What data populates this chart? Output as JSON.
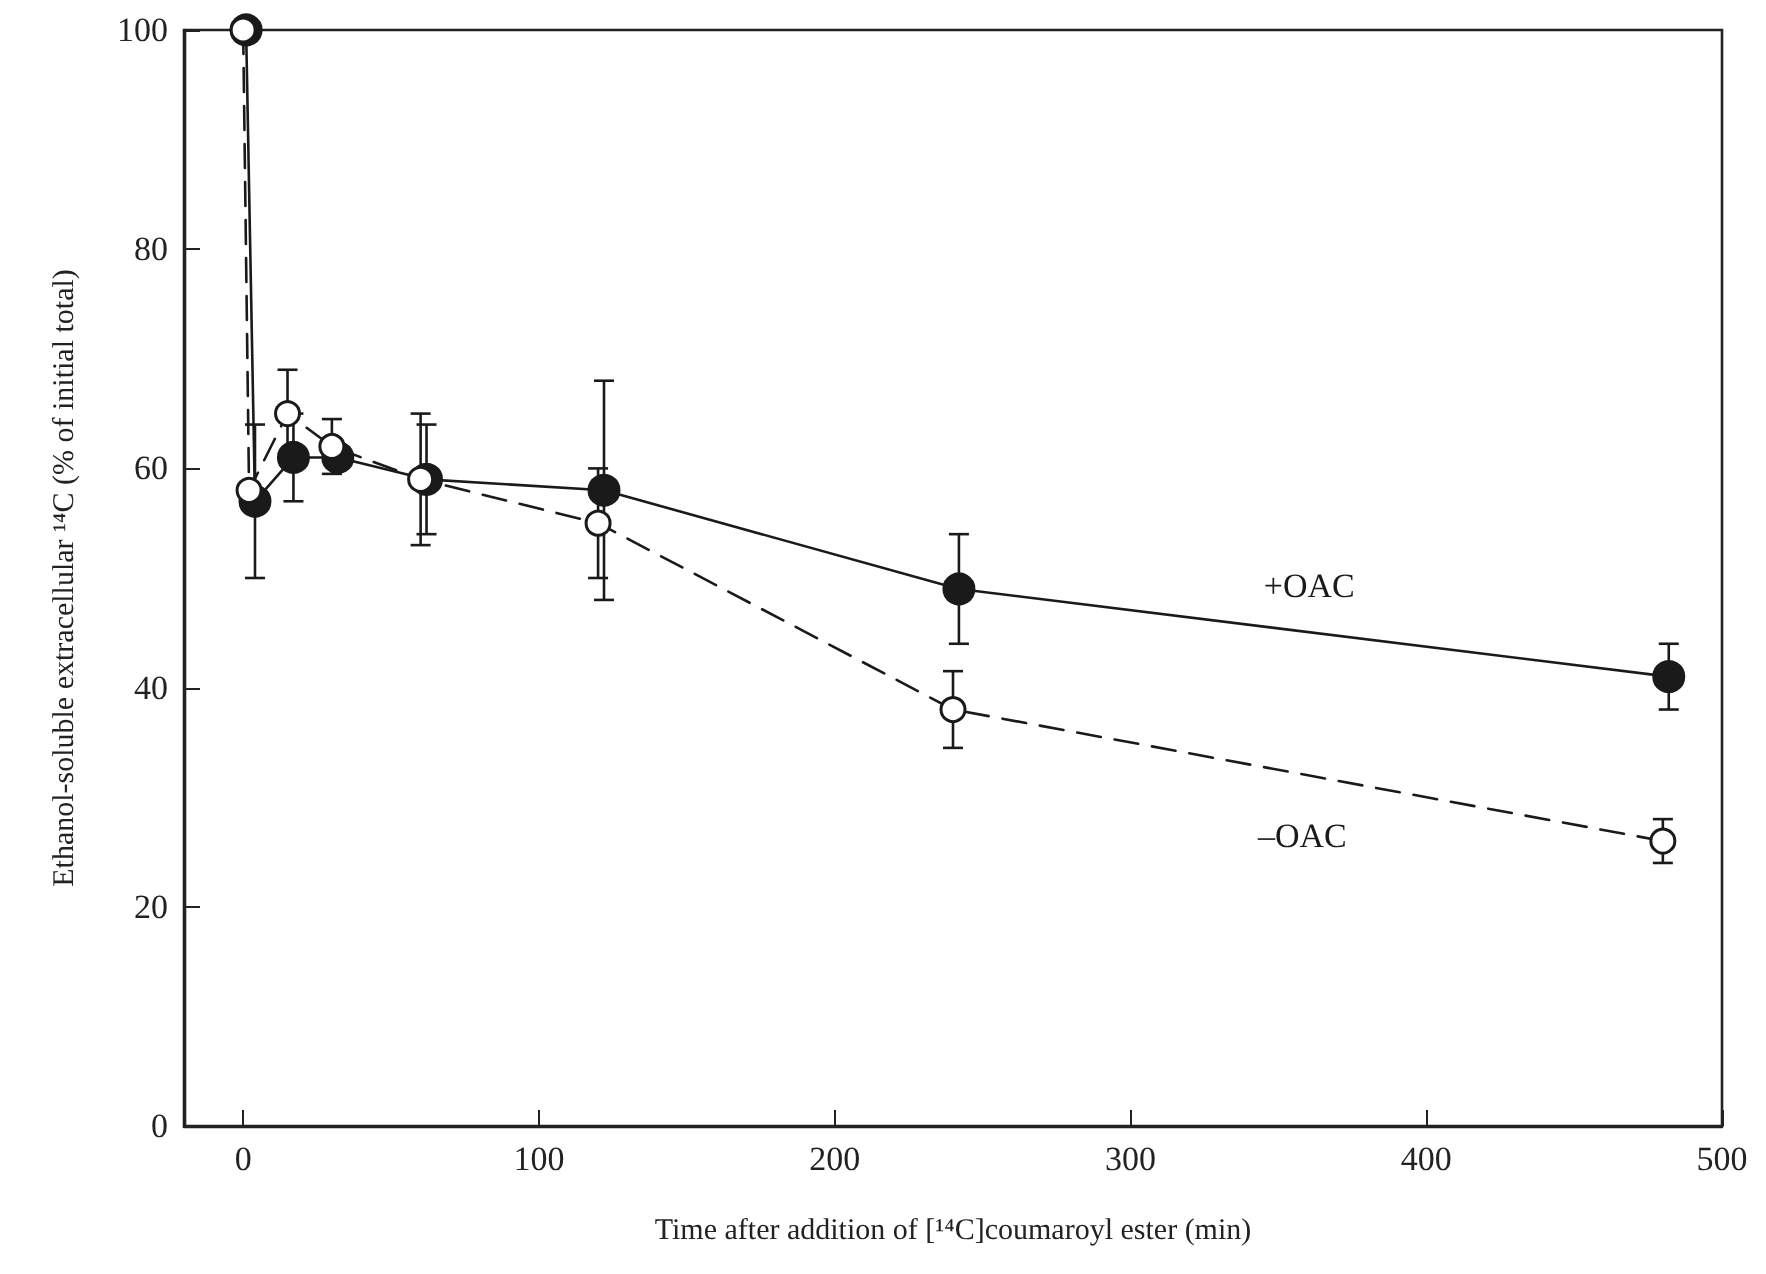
{
  "chart_data": {
    "type": "line",
    "xlabel": "Time after addition of [¹⁴C]coumaroyl ester (min)",
    "ylabel": "Ethanol-soluble extracellular ¹⁴C (% of initial total)",
    "xlim": [
      -20,
      500
    ],
    "xticks": [
      0,
      100,
      200,
      300,
      400,
      500
    ],
    "ylim": [
      0,
      100
    ],
    "yticks": [
      0,
      20,
      40,
      60,
      80,
      100
    ],
    "grid": false,
    "legend": false,
    "marker": "circle",
    "series": [
      {
        "name": "+OAC",
        "color": "#1a1a1a",
        "line_style": "solid",
        "x": [
          1,
          4,
          17,
          32,
          62,
          122,
          242,
          482
        ],
        "values": [
          100,
          57,
          61,
          61,
          59,
          58,
          49,
          41
        ],
        "errors": [
          null,
          7,
          4,
          1,
          5,
          10,
          5,
          3
        ]
      },
      {
        "name": "–OAC",
        "color": "#1a1a1a",
        "line_style": "dashed",
        "x": [
          0,
          2,
          15,
          30,
          60,
          120,
          240,
          480
        ],
        "values": [
          100,
          58,
          65,
          62,
          59,
          55,
          38,
          26
        ],
        "errors": [
          null,
          null,
          4,
          2.5,
          6,
          5,
          3.5,
          2
        ]
      }
    ]
  }
}
